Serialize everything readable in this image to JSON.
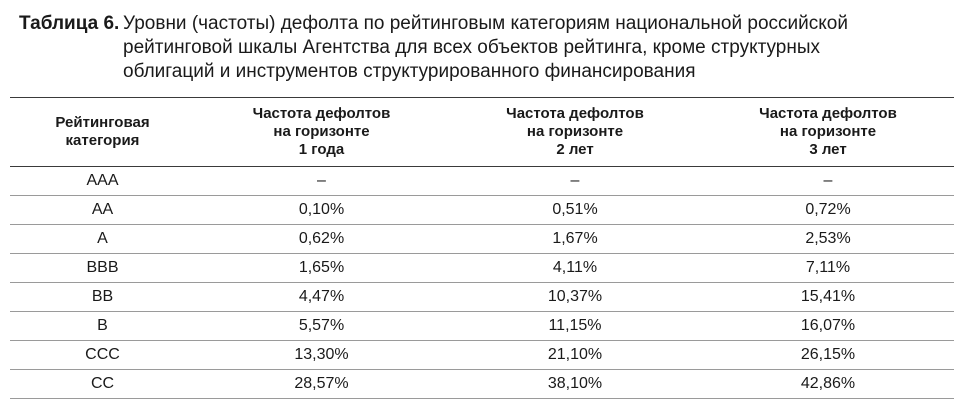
{
  "caption": {
    "label": "Таблица 6.",
    "line1": "Уровни (частоты) дефолта по рейтинговым категориям национальной российской",
    "line2": "рейтинговой шкалы Агентства для всех объектов рейтинга, кроме структурных",
    "line3": "облигаций и инструментов структурированного финансирования"
  },
  "table": {
    "headers": [
      {
        "lines": [
          "Рейтинговая",
          "категория"
        ]
      },
      {
        "lines": [
          "Частота дефолтов",
          "на горизонте",
          "1 года"
        ]
      },
      {
        "lines": [
          "Частота дефолтов",
          "на горизонте",
          "2 лет"
        ]
      },
      {
        "lines": [
          "Частота дефолтов",
          "на горизонте",
          "3 лет"
        ]
      }
    ],
    "rows": [
      [
        "AAA",
        "–",
        "–",
        "–"
      ],
      [
        "AA",
        "0,10%",
        "0,51%",
        "0,72%"
      ],
      [
        "A",
        "0,62%",
        "1,67%",
        "2,53%"
      ],
      [
        "BBB",
        "1,65%",
        "4,11%",
        "7,11%"
      ],
      [
        "BB",
        "4,47%",
        "10,37%",
        "15,41%"
      ],
      [
        "B",
        "5,57%",
        "11,15%",
        "16,07%"
      ],
      [
        "CCC",
        "13,30%",
        "21,10%",
        "26,15%"
      ],
      [
        "CC",
        "28,57%",
        "38,10%",
        "42,86%"
      ]
    ]
  }
}
